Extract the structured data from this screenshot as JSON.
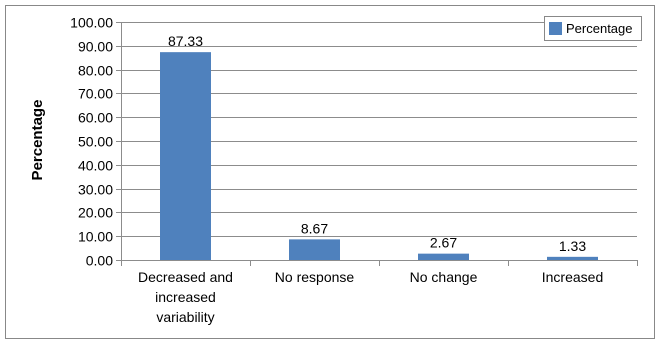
{
  "chart_data": {
    "type": "bar",
    "categories": [
      [
        "Decreased and",
        "increased",
        "variability"
      ],
      [
        "No response"
      ],
      [
        "No change"
      ],
      [
        "Increased"
      ]
    ],
    "series": [
      {
        "name": "Percentage",
        "values": [
          87.33,
          8.67,
          2.67,
          1.33
        ],
        "color": "#4F81BD"
      }
    ],
    "data_labels": [
      "87.33",
      "8.67",
      "2.67",
      "1.33"
    ],
    "yticks": [
      "0.00",
      "10.00",
      "20.00",
      "30.00",
      "40.00",
      "50.00",
      "60.00",
      "70.00",
      "80.00",
      "90.00",
      "100.00"
    ],
    "ylim": [
      0,
      100
    ],
    "ylabel": "Percentage",
    "xlabel": "",
    "title": "",
    "grid": true,
    "legend": {
      "position": "top-right",
      "entries": [
        "Percentage"
      ]
    }
  }
}
